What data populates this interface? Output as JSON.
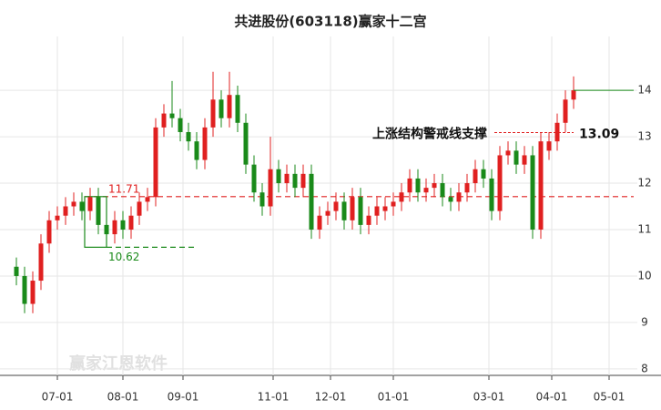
{
  "chart_data": {
    "type": "candlestick",
    "title": "共进股份(603118)赢家十二宫",
    "watermark": "赢家江恩软件",
    "x": [
      0,
      3,
      6,
      9,
      12,
      15,
      18,
      21,
      24,
      27,
      30,
      33,
      36,
      39,
      42,
      45,
      48,
      51,
      54,
      57,
      60,
      63,
      66,
      69,
      72,
      75,
      78,
      81,
      84,
      87,
      90,
      93,
      96,
      99,
      102,
      105,
      108,
      111,
      114,
      117,
      120,
      123,
      126,
      129,
      132,
      135,
      138,
      141,
      144,
      147,
      150,
      153,
      156,
      159,
      162,
      165,
      168,
      171,
      174,
      177,
      180,
      183,
      186,
      189,
      192,
      195,
      198,
      201,
      204
    ],
    "open": [
      10.2,
      10.0,
      9.4,
      9.9,
      10.7,
      11.2,
      11.3,
      11.5,
      11.6,
      11.4,
      11.7,
      11.1,
      10.9,
      11.2,
      11.0,
      11.3,
      11.6,
      11.7,
      13.2,
      13.5,
      13.4,
      13.1,
      12.9,
      12.5,
      13.2,
      13.8,
      13.4,
      13.9,
      13.3,
      12.4,
      11.8,
      11.5,
      12.3,
      12.0,
      12.2,
      11.9,
      12.2,
      11.0,
      11.3,
      11.4,
      11.6,
      11.2,
      11.7,
      11.1,
      11.3,
      11.4,
      11.5,
      11.6,
      11.8,
      12.1,
      11.8,
      11.9,
      12.0,
      11.7,
      11.6,
      11.8,
      12.0,
      12.3,
      12.1,
      11.4,
      12.6,
      12.7,
      12.4,
      12.6,
      11.0,
      12.7,
      12.9,
      13.3,
      13.8
    ],
    "high": [
      10.4,
      10.2,
      10.1,
      10.9,
      11.4,
      11.5,
      11.7,
      11.8,
      11.8,
      11.9,
      11.9,
      11.3,
      11.4,
      11.4,
      11.5,
      11.8,
      11.9,
      13.4,
      13.7,
      14.2,
      13.6,
      13.3,
      13.1,
      13.4,
      14.4,
      14.0,
      14.4,
      14.1,
      13.5,
      12.6,
      12.0,
      13.0,
      12.5,
      12.4,
      12.4,
      12.4,
      12.4,
      11.5,
      11.6,
      11.8,
      11.8,
      11.9,
      11.9,
      11.5,
      11.7,
      11.7,
      11.8,
      12.0,
      12.3,
      12.3,
      12.1,
      12.2,
      12.2,
      11.9,
      12.0,
      12.2,
      12.5,
      12.5,
      12.3,
      12.8,
      12.9,
      12.9,
      12.8,
      12.8,
      13.1,
      13.1,
      13.5,
      14.0,
      14.3
    ],
    "low": [
      9.8,
      9.2,
      9.2,
      9.7,
      10.5,
      11.0,
      11.1,
      11.3,
      11.2,
      11.2,
      10.9,
      10.7,
      10.7,
      10.8,
      10.8,
      11.1,
      11.4,
      11.5,
      13.0,
      13.2,
      12.9,
      12.7,
      12.3,
      12.3,
      13.0,
      13.2,
      13.2,
      13.1,
      12.2,
      11.6,
      11.3,
      11.3,
      11.8,
      11.8,
      11.7,
      11.7,
      10.8,
      10.8,
      11.1,
      11.2,
      11.0,
      11.0,
      10.9,
      10.9,
      11.1,
      11.2,
      11.3,
      11.4,
      11.6,
      11.6,
      11.6,
      11.7,
      11.5,
      11.4,
      11.4,
      11.6,
      11.8,
      11.9,
      11.2,
      11.2,
      12.4,
      12.2,
      12.2,
      10.8,
      10.8,
      12.5,
      12.7,
      13.1,
      13.6
    ],
    "close": [
      10.0,
      9.4,
      9.9,
      10.7,
      11.2,
      11.3,
      11.5,
      11.6,
      11.4,
      11.7,
      11.1,
      10.9,
      11.2,
      11.0,
      11.3,
      11.6,
      11.7,
      13.2,
      13.5,
      13.4,
      13.1,
      12.9,
      12.5,
      13.2,
      13.8,
      13.4,
      13.9,
      13.3,
      12.4,
      11.8,
      11.5,
      12.3,
      12.0,
      12.2,
      11.9,
      12.2,
      11.0,
      11.3,
      11.4,
      11.6,
      11.2,
      11.7,
      11.1,
      11.3,
      11.5,
      11.5,
      11.6,
      11.8,
      12.1,
      11.8,
      11.9,
      12.0,
      11.7,
      11.6,
      11.8,
      12.0,
      12.3,
      12.1,
      11.4,
      12.6,
      12.7,
      12.4,
      12.6,
      11.0,
      12.9,
      12.9,
      13.3,
      13.8,
      14.0
    ],
    "up_color": "#e02020",
    "down_color": "#1a8a1a",
    "xlim": [
      0,
      226
    ],
    "xticks": [
      {
        "value": 15,
        "label": "07-01"
      },
      {
        "value": 39,
        "label": "08-01"
      },
      {
        "value": 61,
        "label": "09-01"
      },
      {
        "value": 94,
        "label": "11-01"
      },
      {
        "value": 115,
        "label": "12-01"
      },
      {
        "value": 138,
        "label": "01-01"
      },
      {
        "value": 173,
        "label": "03-01"
      },
      {
        "value": 196,
        "label": "04-01"
      },
      {
        "value": 217,
        "label": "05-01"
      }
    ],
    "ylim": [
      7.86,
      15.16
    ],
    "yticks": [
      8,
      9,
      10,
      11,
      12,
      13,
      14
    ],
    "grid": true,
    "resistance": {
      "value": 11.71,
      "color": "#e02020"
    },
    "support": {
      "value": 10.62,
      "color": "#1a8a1a",
      "box_x": [
        25,
        33
      ],
      "line_x": [
        33,
        66
      ]
    },
    "warning_line": {
      "label": "上涨结构警戒线支撑",
      "value": 13.09,
      "x_range": [
        175,
        204
      ]
    }
  }
}
